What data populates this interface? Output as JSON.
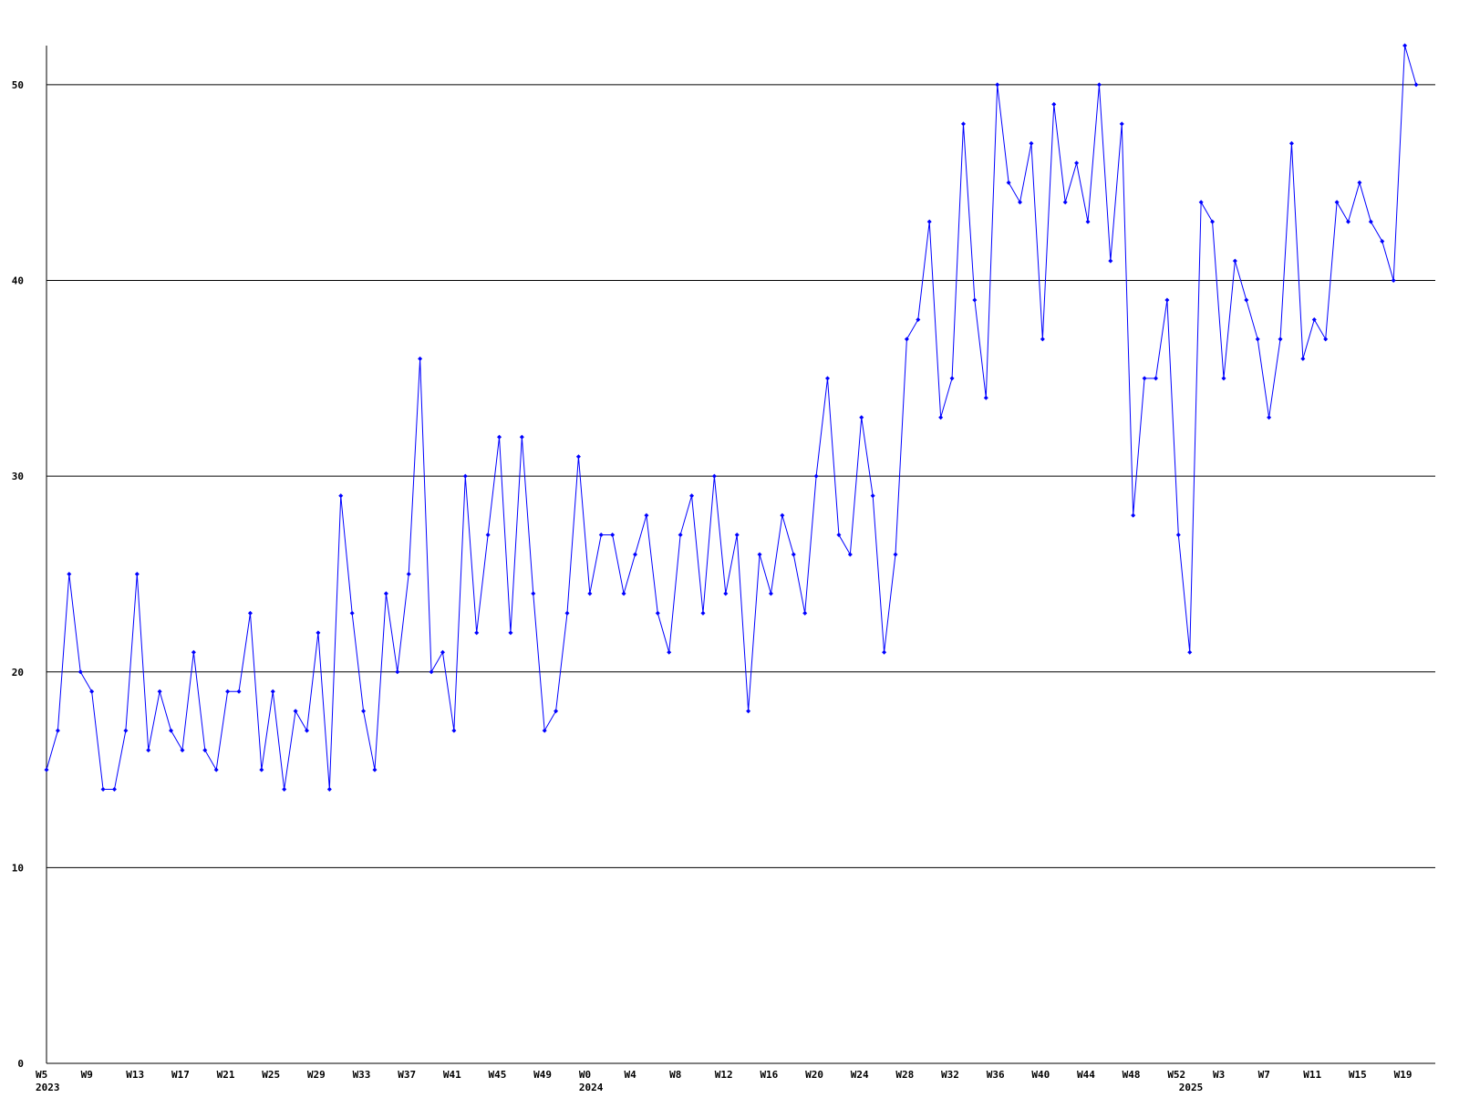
{
  "chart_data": {
    "type": "line",
    "categories": [
      "W5",
      null,
      null,
      null,
      "W9",
      null,
      null,
      null,
      "W13",
      null,
      null,
      null,
      "W17",
      null,
      null,
      null,
      "W21",
      null,
      null,
      null,
      "W25",
      null,
      null,
      null,
      "W29",
      null,
      null,
      null,
      "W33",
      null,
      null,
      null,
      "W37",
      null,
      null,
      null,
      "W41",
      null,
      null,
      null,
      "W45",
      null,
      null,
      null,
      "W49",
      null,
      null,
      null,
      "W0",
      null,
      null,
      null,
      "W4",
      null,
      null,
      null,
      "W8",
      null,
      null,
      null,
      "W12",
      null,
      null,
      null,
      "W16",
      null,
      null,
      null,
      "W20",
      null,
      null,
      null,
      "W24",
      null,
      null,
      null,
      "W28",
      null,
      null,
      null,
      "W32",
      null,
      null,
      null,
      "W36",
      null,
      null,
      null,
      "W40",
      null,
      null,
      null,
      "W44",
      null,
      null,
      null,
      "W48",
      null,
      null,
      null,
      "W52",
      null,
      null,
      null,
      "W3",
      null,
      null,
      null,
      "W7",
      null,
      null,
      null,
      "W11",
      null,
      null,
      null,
      "W15",
      null,
      null,
      null,
      "W19",
      null
    ],
    "category_years": [
      "2023",
      null,
      null,
      null,
      null,
      null,
      null,
      null,
      null,
      null,
      null,
      null,
      null,
      null,
      null,
      null,
      null,
      null,
      null,
      null,
      null,
      null,
      null,
      null,
      null,
      null,
      null,
      null,
      null,
      null,
      null,
      null,
      null,
      null,
      null,
      null,
      null,
      null,
      null,
      null,
      null,
      null,
      null,
      null,
      null,
      null,
      null,
      null,
      "2024",
      null,
      null,
      null,
      null,
      null,
      null,
      null,
      null,
      null,
      null,
      null,
      null,
      null,
      null,
      null,
      null,
      null,
      null,
      null,
      null,
      null,
      null,
      null,
      null,
      null,
      null,
      null,
      null,
      null,
      null,
      null,
      null,
      null,
      null,
      null,
      null,
      null,
      null,
      null,
      null,
      null,
      null,
      null,
      null,
      null,
      null,
      null,
      null,
      null,
      null,
      null,
      null,
      "2025",
      null,
      null,
      null,
      null,
      null,
      null,
      null,
      null,
      null,
      null,
      null,
      null,
      null,
      null,
      null,
      null,
      null,
      null,
      null,
      null
    ],
    "values": [
      15,
      17,
      25,
      20,
      19,
      14,
      14,
      17,
      25,
      16,
      19,
      17,
      16,
      21,
      16,
      15,
      19,
      19,
      23,
      15,
      19,
      14,
      18,
      17,
      22,
      14,
      29,
      23,
      18,
      15,
      24,
      20,
      25,
      36,
      20,
      21,
      17,
      30,
      22,
      27,
      32,
      22,
      32,
      24,
      17,
      18,
      23,
      31,
      24,
      27,
      27,
      24,
      26,
      28,
      23,
      21,
      27,
      29,
      23,
      30,
      24,
      27,
      18,
      26,
      24,
      28,
      26,
      23,
      30,
      35,
      27,
      26,
      33,
      29,
      21,
      26,
      37,
      38,
      43,
      33,
      35,
      48,
      39,
      34,
      50,
      45,
      44,
      47,
      37,
      49,
      44,
      46,
      43,
      50,
      41,
      48,
      28,
      35,
      35,
      39,
      27,
      21,
      44,
      43,
      35,
      41,
      39,
      37,
      33,
      37,
      47,
      36,
      38,
      37,
      44,
      43,
      45,
      43,
      42,
      40,
      52,
      50
    ],
    "color": "#0000ff",
    "ylim": [
      0,
      52
    ],
    "yticks": [
      0,
      10,
      20,
      30,
      40,
      50
    ],
    "grid": true
  }
}
